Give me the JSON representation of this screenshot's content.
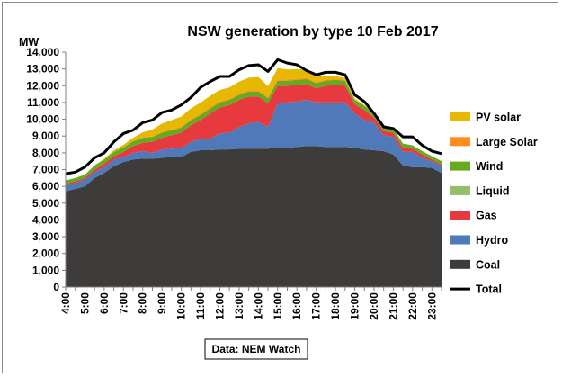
{
  "chart_data": {
    "type": "area",
    "title": "NSW generation by type 10 Feb 2017",
    "ylabel": "MW",
    "ylim": [
      0,
      14000
    ],
    "ytick_step": 1000,
    "source": "Data: NEM Watch",
    "legend_position": "right",
    "grid": false,
    "x": [
      "4:00",
      "4:30",
      "5:00",
      "5:30",
      "6:00",
      "6:30",
      "7:00",
      "7:30",
      "8:00",
      "8:30",
      "9:00",
      "9:30",
      "10:00",
      "10:30",
      "11:00",
      "11:30",
      "12:00",
      "12:30",
      "13:00",
      "13:30",
      "14:00",
      "14:30",
      "15:00",
      "15:30",
      "16:00",
      "16:30",
      "17:00",
      "17:30",
      "18:00",
      "18:30",
      "19:00",
      "19:30",
      "20:00",
      "20:30",
      "21:00",
      "21:30",
      "22:00",
      "22:30",
      "23:00",
      "23:30"
    ],
    "xtick_labels": [
      "4:00",
      "5:00",
      "6:00",
      "7:00",
      "8:00",
      "9:00",
      "10:00",
      "11:00",
      "12:00",
      "13:00",
      "14:00",
      "15:00",
      "16:00",
      "17:00",
      "18:00",
      "19:00",
      "20:00",
      "21:00",
      "22:00",
      "23:00"
    ],
    "series": [
      {
        "name": "Coal",
        "color": "#3e3b3b",
        "values": [
          5700,
          5850,
          6000,
          6500,
          6800,
          7200,
          7450,
          7600,
          7650,
          7650,
          7700,
          7750,
          7750,
          8050,
          8150,
          8150,
          8200,
          8200,
          8250,
          8250,
          8250,
          8250,
          8300,
          8300,
          8350,
          8400,
          8400,
          8350,
          8350,
          8350,
          8300,
          8200,
          8150,
          8100,
          7900,
          7250,
          7150,
          7150,
          7100,
          6800
        ]
      },
      {
        "name": "Hydro",
        "color": "#4f79b8",
        "values": [
          350,
          350,
          400,
          350,
          350,
          400,
          300,
          400,
          450,
          350,
          500,
          500,
          550,
          600,
          700,
          700,
          950,
          1000,
          1300,
          1500,
          1600,
          1300,
          2650,
          2700,
          2700,
          2750,
          2600,
          2650,
          2650,
          2650,
          2050,
          1750,
          1650,
          950,
          1050,
          800,
          900,
          550,
          400,
          400
        ]
      },
      {
        "name": "Gas",
        "color": "#e63a3f",
        "values": [
          100,
          100,
          100,
          150,
          200,
          200,
          300,
          400,
          500,
          650,
          700,
          800,
          900,
          1000,
          1100,
          1500,
          1550,
          1650,
          1600,
          1600,
          1500,
          1400,
          1050,
          1000,
          1000,
          950,
          850,
          1000,
          1050,
          1000,
          550,
          600,
          300,
          250,
          250,
          250,
          200,
          200,
          100,
          100
        ]
      },
      {
        "name": "Liquid",
        "color": "#92bf68",
        "values": [
          0,
          0,
          0,
          0,
          0,
          0,
          0,
          0,
          0,
          0,
          0,
          0,
          0,
          0,
          0,
          0,
          0,
          0,
          0,
          0,
          0,
          0,
          0,
          0,
          0,
          0,
          0,
          0,
          0,
          0,
          0,
          0,
          0,
          0,
          0,
          0,
          0,
          0,
          0,
          0
        ]
      },
      {
        "name": "Wind",
        "color": "#66aa1e",
        "values": [
          200,
          200,
          200,
          250,
          250,
          250,
          280,
          280,
          300,
          300,
          300,
          300,
          300,
          300,
          300,
          300,
          300,
          300,
          300,
          300,
          300,
          300,
          300,
          300,
          300,
          300,
          300,
          300,
          300,
          300,
          250,
          250,
          250,
          250,
          250,
          250,
          200,
          200,
          200,
          200
        ]
      },
      {
        "name": "Large Solar",
        "color": "#ff8c1a",
        "values": [
          0,
          0,
          0,
          0,
          0,
          0,
          0,
          10,
          20,
          30,
          40,
          50,
          60,
          60,
          70,
          70,
          70,
          70,
          70,
          70,
          70,
          70,
          70,
          70,
          70,
          70,
          60,
          60,
          50,
          40,
          30,
          20,
          0,
          0,
          0,
          0,
          0,
          0,
          0,
          0
        ]
      },
      {
        "name": "PV solar",
        "color": "#e6b800",
        "values": [
          0,
          0,
          0,
          0,
          50,
          100,
          150,
          200,
          300,
          400,
          500,
          550,
          600,
          640,
          670,
          680,
          680,
          680,
          720,
          760,
          800,
          650,
          680,
          600,
          570,
          470,
          350,
          250,
          180,
          120,
          60,
          20,
          0,
          0,
          0,
          0,
          0,
          0,
          0,
          0
        ]
      }
    ],
    "total": {
      "name": "Total",
      "color": "#000000",
      "values": [
        6750,
        6850,
        7150,
        7700,
        8000,
        8650,
        9150,
        9350,
        9800,
        9950,
        10400,
        10550,
        10850,
        11300,
        11900,
        12250,
        12550,
        12550,
        12950,
        13200,
        13250,
        12850,
        13550,
        13350,
        13250,
        12900,
        12650,
        12800,
        12800,
        12650,
        11450,
        11050,
        10350,
        9550,
        9450,
        8950,
        8950,
        8450,
        8100,
        7950
      ]
    },
    "legend_order": [
      "PV solar",
      "Large Solar",
      "Wind",
      "Liquid",
      "Gas",
      "Hydro",
      "Coal",
      "Total"
    ]
  }
}
